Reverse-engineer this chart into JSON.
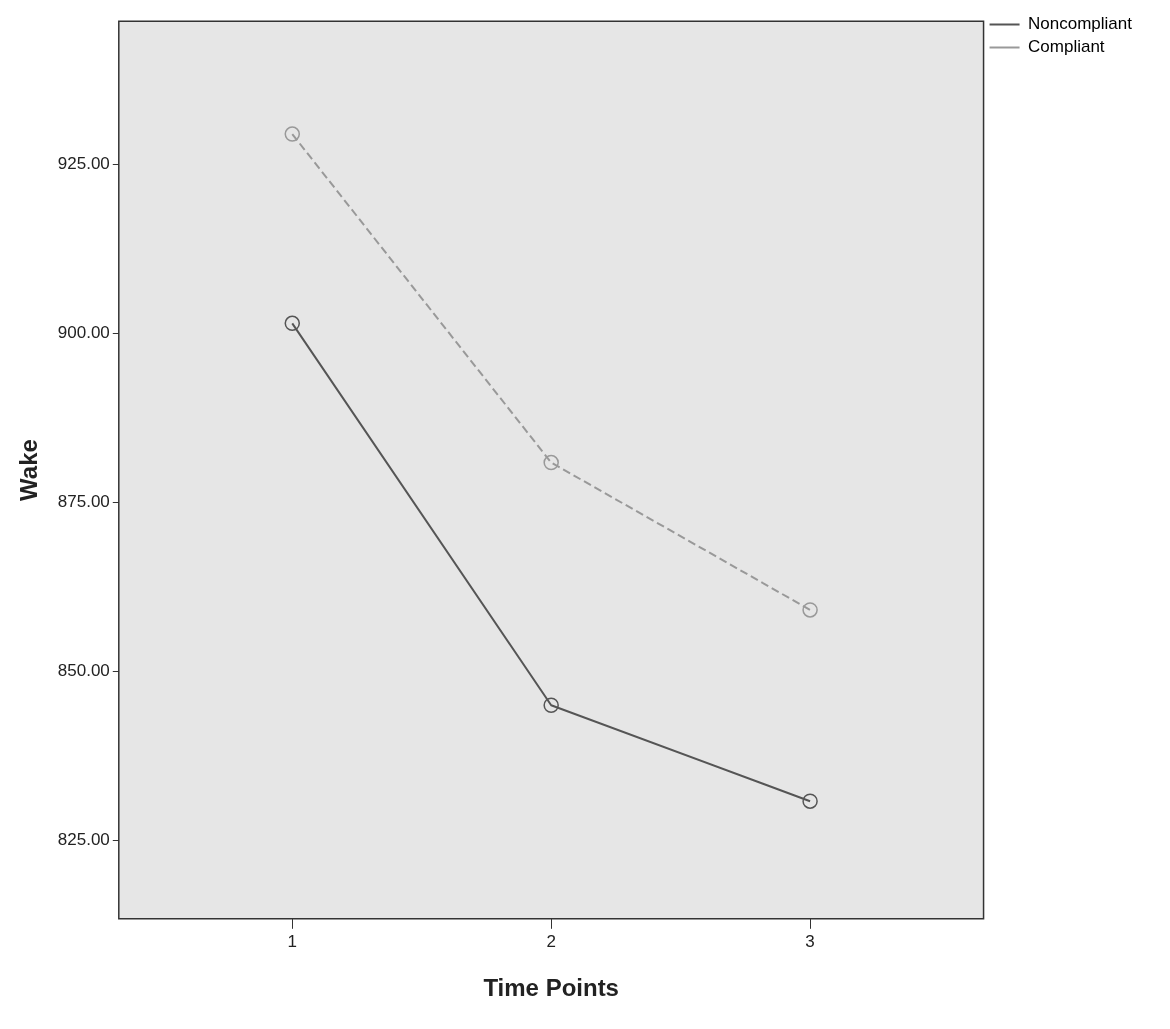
{
  "chart_data": {
    "type": "line",
    "xlabel": "Time Points",
    "ylabel": "Wake",
    "x": [
      1,
      2,
      3
    ],
    "xlim": [
      0.33,
      3.67
    ],
    "xticks": [
      1,
      2,
      3
    ],
    "ylim": [
      813.4,
      946.2
    ],
    "yticks": [
      {
        "value": 825,
        "label": "825.00"
      },
      {
        "value": 850,
        "label": "850.00"
      },
      {
        "value": 875,
        "label": "875.00"
      },
      {
        "value": 900,
        "label": "900.00"
      },
      {
        "value": 925,
        "label": "925.00"
      }
    ],
    "series": [
      {
        "name": "Noncompliant",
        "color": "#555555",
        "line_style": "solid",
        "values": [
          901.5,
          845.0,
          830.8
        ]
      },
      {
        "name": "Compliant",
        "color": "#999999",
        "line_style": "dashed",
        "values": [
          929.5,
          880.9,
          859.1
        ]
      }
    ],
    "marker": "circle",
    "grid": false,
    "legend": "top right"
  }
}
